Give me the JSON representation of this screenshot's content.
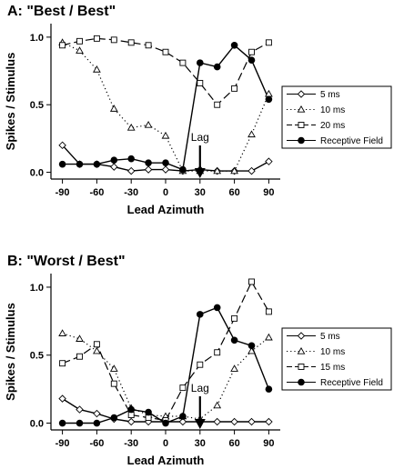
{
  "chart_data": [
    {
      "type": "line",
      "title": "A: \"Best / Best\"",
      "xlabel": "Lead Azimuth",
      "ylabel": "Spikes / Stimulus",
      "xlim": [
        -100,
        100
      ],
      "ylim": [
        -0.05,
        1.1
      ],
      "xticks": [
        -90,
        -60,
        -30,
        0,
        30,
        60,
        90
      ],
      "yticks": [
        0.0,
        0.5,
        1.0
      ],
      "ytick_labels": [
        "0.0",
        "0.5",
        "1.0"
      ],
      "legend_position": "right",
      "annotation": {
        "text": "Lag",
        "x": 30
      },
      "x": [
        -90,
        -75,
        -60,
        -45,
        -30,
        -15,
        0,
        15,
        30,
        45,
        60,
        75,
        90
      ],
      "series": [
        {
          "name": "5 ms",
          "marker": "diamond",
          "line": "solid",
          "values": [
            0.2,
            0.06,
            0.06,
            0.04,
            0.01,
            0.02,
            0.02,
            0.01,
            0.02,
            0.01,
            0.01,
            0.01,
            0.08
          ]
        },
        {
          "name": "10 ms",
          "marker": "triangle",
          "line": "dotted",
          "values": [
            0.96,
            0.9,
            0.76,
            0.47,
            0.33,
            0.35,
            0.27,
            0.01,
            0.01,
            0.01,
            0.01,
            0.28,
            0.58
          ]
        },
        {
          "name": "20 ms",
          "marker": "square",
          "line": "dashed",
          "values": [
            0.94,
            0.97,
            0.99,
            0.98,
            0.96,
            0.94,
            0.89,
            0.81,
            0.66,
            0.5,
            0.62,
            0.89,
            0.96
          ]
        },
        {
          "name": "Receptive Field",
          "marker": "circle",
          "line": "solid",
          "values": [
            0.06,
            0.06,
            0.06,
            0.09,
            0.1,
            0.07,
            0.07,
            0.02,
            0.81,
            0.78,
            0.94,
            0.83,
            0.54
          ]
        }
      ]
    },
    {
      "type": "line",
      "title": "B: \"Worst / Best\"",
      "xlabel": "Lead Azimuth",
      "ylabel": "Spikes / Stimulus",
      "xlim": [
        -100,
        100
      ],
      "ylim": [
        -0.05,
        1.1
      ],
      "xticks": [
        -90,
        -60,
        -30,
        0,
        30,
        60,
        90
      ],
      "yticks": [
        0.0,
        0.5,
        1.0
      ],
      "ytick_labels": [
        "0.0",
        "0.5",
        "1.0"
      ],
      "legend_position": "lower-right",
      "annotation": {
        "text": "Lag",
        "x": 30
      },
      "x": [
        -90,
        -75,
        -60,
        -45,
        -30,
        -15,
        0,
        15,
        30,
        45,
        60,
        75,
        90
      ],
      "series": [
        {
          "name": "5 ms",
          "marker": "diamond",
          "line": "solid",
          "values": [
            0.18,
            0.1,
            0.07,
            0.03,
            0.01,
            0.01,
            0.01,
            0.01,
            0.01,
            0.01,
            0.01,
            0.01,
            0.01
          ]
        },
        {
          "name": "10 ms",
          "marker": "triangle",
          "line": "dotted",
          "values": [
            0.66,
            0.62,
            0.53,
            0.4,
            0.11,
            0.06,
            0.05,
            0.05,
            0.03,
            0.13,
            0.4,
            0.53,
            0.63
          ]
        },
        {
          "name": "15 ms",
          "marker": "square",
          "line": "dashed",
          "values": [
            0.44,
            0.49,
            0.58,
            0.29,
            0.06,
            0.04,
            0.02,
            0.26,
            0.43,
            0.52,
            0.77,
            1.04,
            0.82
          ]
        },
        {
          "name": "Receptive Field",
          "marker": "circle",
          "line": "solid",
          "values": [
            0.0,
            0.0,
            0.0,
            0.04,
            0.1,
            0.08,
            0.0,
            0.05,
            0.8,
            0.85,
            0.61,
            0.57,
            0.25
          ]
        }
      ]
    }
  ]
}
